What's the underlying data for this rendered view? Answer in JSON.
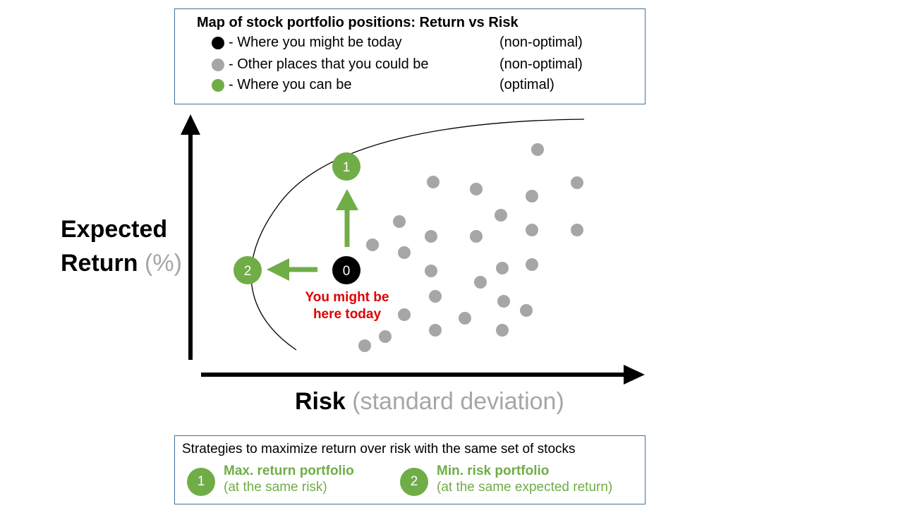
{
  "legend": {
    "title": "Map of stock portfolio positions: Return vs Risk",
    "items": [
      {
        "text": "- Where you might be today",
        "tag": "(non-optimal)",
        "color": "#000000"
      },
      {
        "text": "- Other places that you could be",
        "tag": "(non-optimal)",
        "color": "#a6a6a6"
      },
      {
        "text": "- Where you can be",
        "tag": "(optimal)",
        "color": "#70ad47"
      }
    ]
  },
  "axes": {
    "y_main": "Expected",
    "y_main2": "Return",
    "y_unit": "(%)",
    "x_main": "Risk",
    "x_unit": "(standard deviation)"
  },
  "nodes": {
    "today": "0",
    "max_return": "1",
    "min_risk": "2"
  },
  "today_label": {
    "line1": "You might be",
    "line2": "here today"
  },
  "strategies": {
    "title": "Strategies to maximize return over risk with the same set of stocks",
    "items": [
      {
        "num": "1",
        "name": "Max. return portfolio",
        "sub": "(at the same risk)"
      },
      {
        "num": "2",
        "name": "Min. risk portfolio",
        "sub": "(at the same expected return)"
      }
    ]
  },
  "colors": {
    "optimal": "#70ad47",
    "other": "#a6a6a6",
    "today": "#000000",
    "today_text": "#e00000",
    "box_border": "#41719c"
  },
  "gray_point_count": 31
}
